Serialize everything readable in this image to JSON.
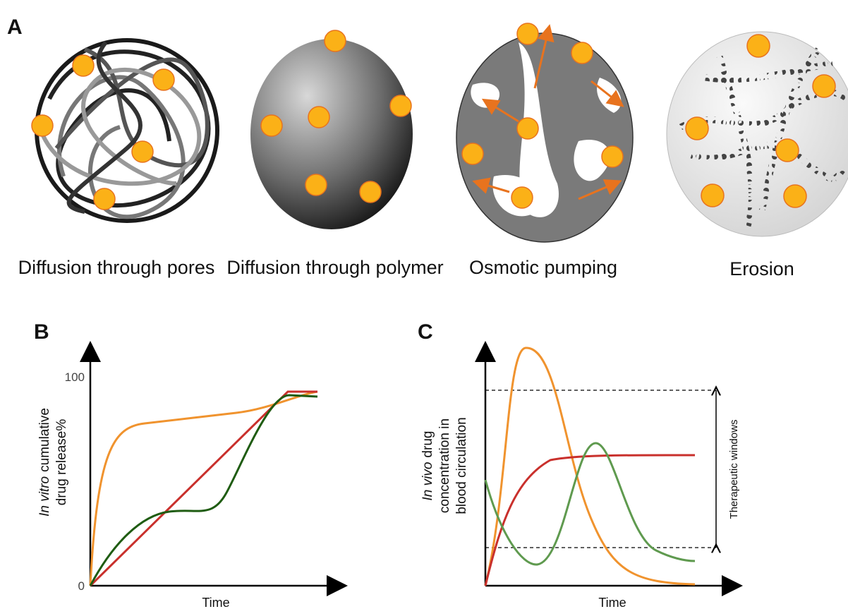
{
  "panel_a": {
    "label": "A",
    "mechanisms": [
      "Diffusion through pores",
      "Diffusion through polymer",
      "Osmotic pumping",
      "Erosion"
    ]
  },
  "panel_b": {
    "label": "B",
    "y_label_italic": "In vitro",
    "y_label_rest": "cumulative",
    "y_label_line2": "drug release%",
    "yticks": [
      0,
      100
    ],
    "x_label": "Time"
  },
  "panel_c": {
    "label": "C",
    "y_label_italic": "In vivo",
    "y_label_rest": "drug",
    "y_label_line2": "concentration in",
    "y_label_line3": "blood circulation",
    "window_label": "Therapeutic windows",
    "x_label": "Time"
  }
}
